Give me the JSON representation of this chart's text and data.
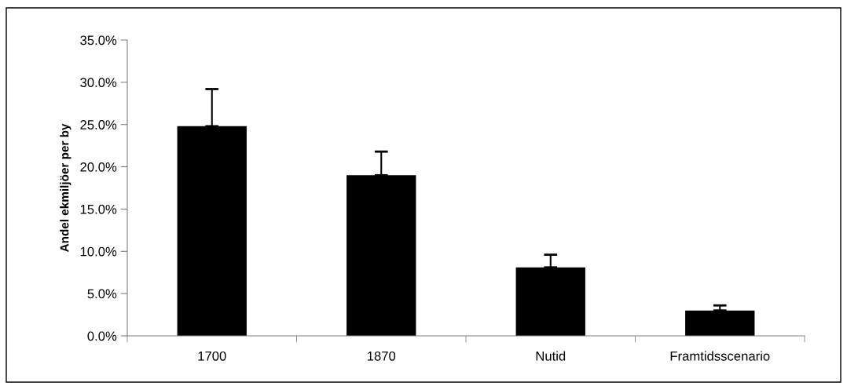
{
  "chart_data": {
    "type": "bar",
    "ylabel": "Andel ekmiljöer per by",
    "categories": [
      "1700",
      "1870",
      "Nutid",
      "Framtidsscenario"
    ],
    "values": [
      24.8,
      19.0,
      8.1,
      3.0
    ],
    "errors": [
      [
        24.8,
        29.2
      ],
      [
        19.0,
        21.8
      ],
      [
        8.1,
        9.6
      ],
      [
        3.0,
        3.6
      ]
    ],
    "color": "#000000",
    "ylim": [
      0,
      35
    ],
    "yticks": [
      {
        "value": 0,
        "label": "0.0%"
      },
      {
        "value": 5,
        "label": "5.0%"
      },
      {
        "value": 10,
        "label": "10.0%"
      },
      {
        "value": 15,
        "label": "15.0%"
      },
      {
        "value": 20,
        "label": "20.0%"
      },
      {
        "value": 25,
        "label": "25.0%"
      },
      {
        "value": 30,
        "label": "30.0%"
      },
      {
        "value": 35,
        "label": "35.0%"
      }
    ],
    "grid": false,
    "legend": false
  }
}
